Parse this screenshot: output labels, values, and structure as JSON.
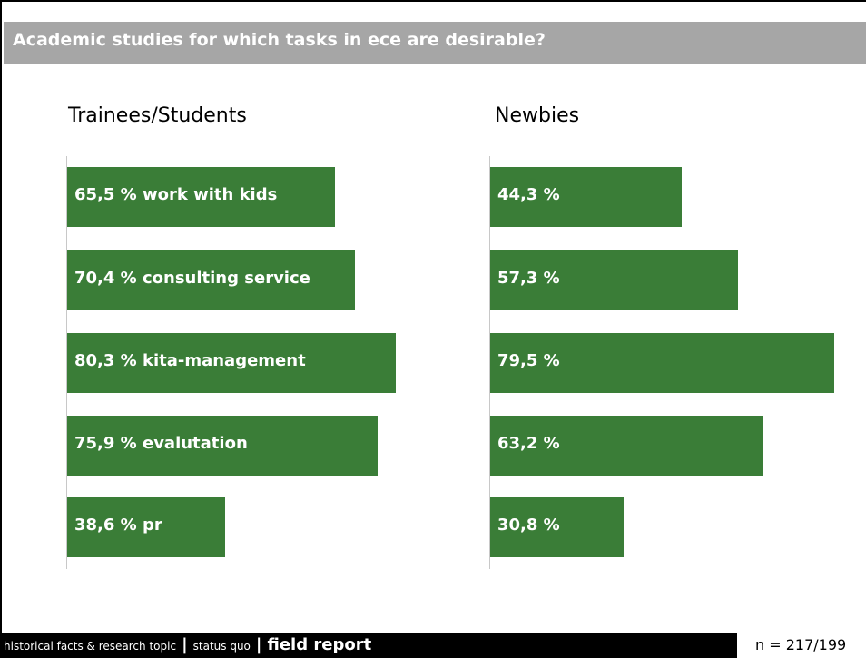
{
  "slide": {
    "title": "Academic studies for which tasks in ece are desirable?",
    "footer": {
      "item1": "historical facts & research topic",
      "separator": "|",
      "item2": "status quo",
      "item3": "field report"
    },
    "sample_size": "n = 217/199"
  },
  "colors": {
    "bar": "#3a7d37",
    "title_bar": "#a6a6a6",
    "footer_bg": "#000000"
  },
  "chart_data": [
    {
      "type": "bar",
      "orientation": "horizontal",
      "title": "Trainees/Students",
      "categories": [
        "work with kids",
        "consulting service",
        "kita-management",
        "evalutation",
        "pr"
      ],
      "values": [
        65.5,
        70.4,
        80.3,
        75.9,
        38.6
      ],
      "labels": [
        "65,5 % work with kids",
        "70,4 % consulting service",
        "80,3 % kita-management",
        "75,9 % evalutation",
        "38,6 % pr"
      ],
      "xlim": [
        0,
        80.3
      ]
    },
    {
      "type": "bar",
      "orientation": "horizontal",
      "title": "Newbies",
      "categories": [
        "work with kids",
        "consulting service",
        "kita-management",
        "evalutation",
        "pr"
      ],
      "values": [
        44.3,
        57.3,
        79.5,
        63.2,
        30.8
      ],
      "labels": [
        "44,3 %",
        "57,3 %",
        "79,5 %",
        "63,2 %",
        "30,8 %"
      ],
      "xlim": [
        0,
        79.5
      ]
    }
  ]
}
